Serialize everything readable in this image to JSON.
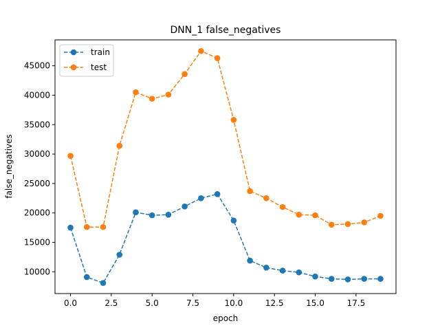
{
  "chart_data": {
    "type": "line",
    "title": "DNN_1 false_negatives",
    "xlabel": "epoch",
    "ylabel": "false_negatives",
    "x": [
      0,
      1,
      2,
      3,
      4,
      5,
      6,
      7,
      8,
      9,
      10,
      11,
      12,
      13,
      14,
      15,
      16,
      17,
      18,
      19
    ],
    "xlim": [
      -0.95,
      19.95
    ],
    "ylim": [
      6300,
      49400
    ],
    "xticks": [
      0.0,
      2.5,
      5.0,
      7.5,
      10.0,
      12.5,
      15.0,
      17.5
    ],
    "xtick_labels": [
      "0.0",
      "2.5",
      "5.0",
      "7.5",
      "10.0",
      "12.5",
      "15.0",
      "17.5"
    ],
    "yticks": [
      10000,
      15000,
      20000,
      25000,
      30000,
      35000,
      40000,
      45000
    ],
    "ytick_labels": [
      "10000",
      "15000",
      "20000",
      "25000",
      "30000",
      "35000",
      "40000",
      "45000"
    ],
    "grid": false,
    "legend_position": "top-left",
    "series": [
      {
        "name": "train",
        "color": "#1f77b4",
        "linestyle": "dashed",
        "marker": "circle",
        "values": [
          17500,
          9100,
          8100,
          12900,
          20100,
          19600,
          19700,
          21100,
          22500,
          23200,
          18700,
          11900,
          10700,
          10200,
          9900,
          9200,
          8800,
          8700,
          8800,
          8800
        ]
      },
      {
        "name": "test",
        "color": "#ff7f0e",
        "linestyle": "dashed",
        "marker": "circle",
        "values": [
          29700,
          17600,
          17600,
          31400,
          40500,
          39400,
          40100,
          43600,
          47500,
          46300,
          35800,
          23700,
          22500,
          21000,
          19700,
          19600,
          18000,
          18100,
          18400,
          19500
        ]
      }
    ]
  }
}
